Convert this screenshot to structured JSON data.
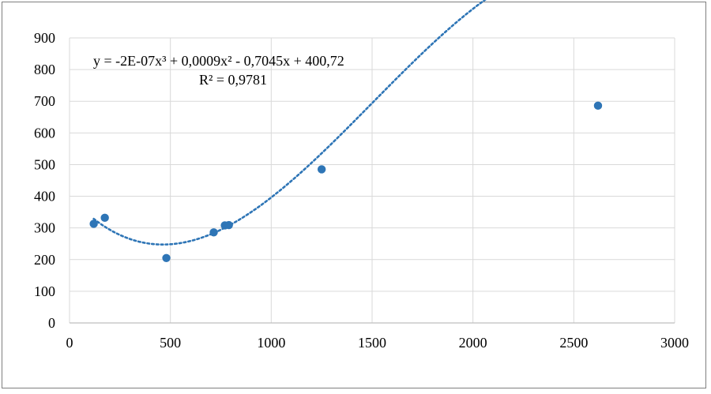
{
  "chart_data": {
    "type": "scatter",
    "title": "",
    "xlabel": "",
    "ylabel": "",
    "xlim": [
      0,
      3000
    ],
    "ylim": [
      0,
      900
    ],
    "x_ticks": [
      0,
      500,
      1000,
      1500,
      2000,
      2500,
      3000
    ],
    "y_ticks": [
      0,
      100,
      200,
      300,
      400,
      500,
      600,
      700,
      800,
      900
    ],
    "grid": true,
    "series": [
      {
        "color": "#2e75b6",
        "points": [
          {
            "x": 120,
            "y": 313
          },
          {
            "x": 175,
            "y": 332
          },
          {
            "x": 480,
            "y": 205
          },
          {
            "x": 715,
            "y": 286
          },
          {
            "x": 770,
            "y": 308
          },
          {
            "x": 790,
            "y": 309
          },
          {
            "x": 1250,
            "y": 485
          },
          {
            "x": 2620,
            "y": 686
          }
        ]
      }
    ],
    "trendline": {
      "type": "polynomial",
      "order": 3,
      "coefficients": [
        -2e-07,
        0.0009,
        -0.7045,
        400.72
      ],
      "x_range": [
        120,
        2620
      ],
      "style": "dotted",
      "color": "#2e75b6"
    },
    "annotations": {
      "equation_line1": "y = -2E-07x³ + 0,0009x² - 0,7045x + 400,72",
      "equation_line2": "R² = 0,9781"
    }
  }
}
